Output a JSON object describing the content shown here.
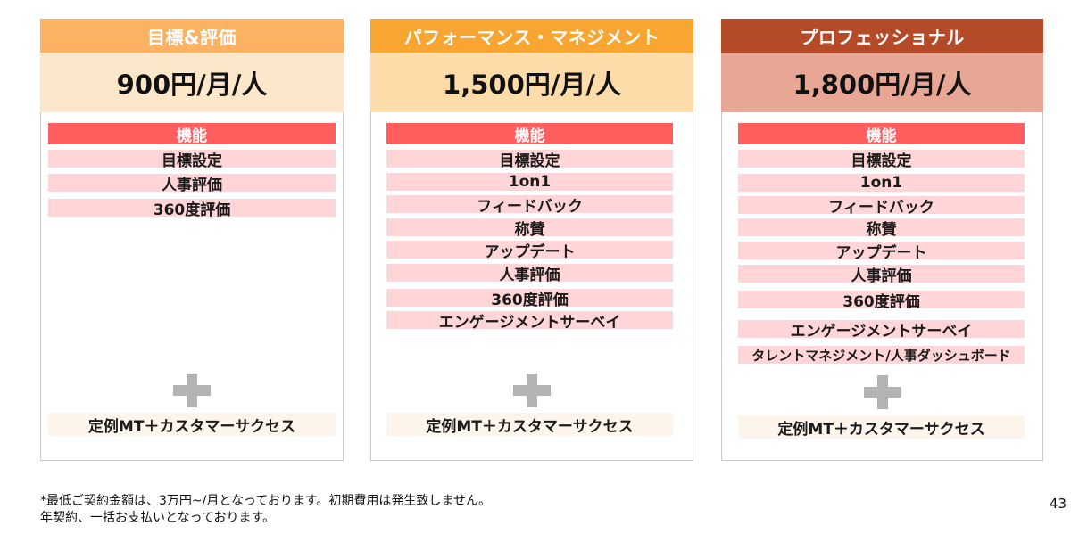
{
  "plans": [
    {
      "name": "目標&評価",
      "price": "900円/月/人",
      "header_color": "#fbb363",
      "price_bg": "#fde7cb",
      "features_header": "機能",
      "features": [
        "目標設定",
        "人事評価",
        "360度評価"
      ],
      "support": "定例MT＋カスタマーサクセス"
    },
    {
      "name": "パフォーマンス・マネジメント",
      "price": "1,500円/月/人",
      "header_color": "#f9a531",
      "price_bg": "#fddcaa",
      "features_header": "機能",
      "features": [
        "目標設定",
        "1on1",
        "フィードバック",
        "称賛",
        "アップデート",
        "人事評価",
        "360度評価",
        "エンゲージメントサーベイ"
      ],
      "support": "定例MT＋カスタマーサクセス"
    },
    {
      "name": "プロフェッショナル",
      "price": "1,800円/月/人",
      "header_color": "#b44a27",
      "price_bg": "#e8a794",
      "features_header": "機能",
      "features": [
        "目標設定",
        "1on1",
        "フィードバック",
        "称賛",
        "アップデート",
        "人事評価",
        "360度評価",
        "エンゲージメントサーベイ",
        "タレントマネジメント/人事ダッシュボード"
      ],
      "support": "定例MT＋カスタマーサクセス"
    }
  ],
  "plus_icon": "plus-icon",
  "footnote": {
    "line1": "*最低ご契約金額は、3万円~/月となっております。初期費用は発生致しません。",
    "line2": "年契約、一括お支払いとなっております。"
  },
  "page_number": "43"
}
